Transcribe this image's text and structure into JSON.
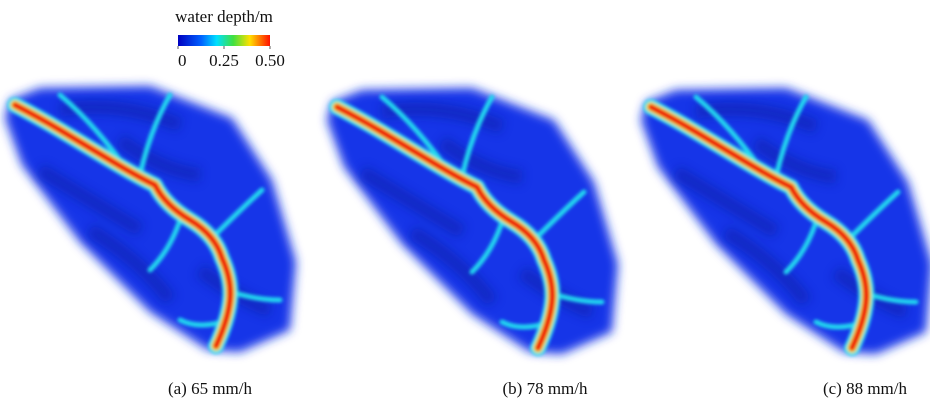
{
  "legend": {
    "title": "water depth/m",
    "range": [
      0,
      0.5
    ],
    "ticks": [
      0,
      0.25,
      {
        "value": 0.5,
        "label": "0.50"
      }
    ]
  },
  "panels": [
    {
      "caption": "(a) 65 mm/h"
    },
    {
      "caption": "(b) 78 mm/h"
    },
    {
      "caption": "(c) 88 mm/h"
    }
  ]
}
